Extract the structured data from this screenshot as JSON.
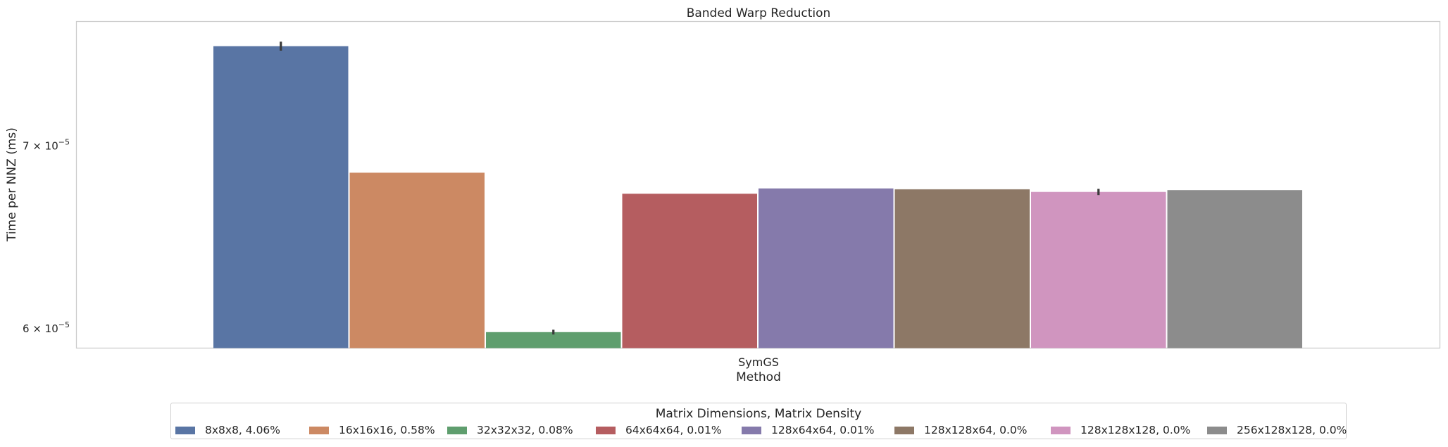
{
  "chart_data": {
    "type": "bar",
    "title": "Banded Warp Reduction",
    "xlabel": "Method",
    "ylabel": "Time per NNZ (ms)",
    "yscale": "log",
    "ylim": [
      5.9e-05,
      7.77e-05
    ],
    "yticks": [
      {
        "value": 6e-05,
        "mantissa": "6",
        "exp": "−5"
      },
      {
        "value": 7e-05,
        "mantissa": "7",
        "exp": "−5"
      }
    ],
    "grid": false,
    "categories": [
      "SymGS"
    ],
    "legend_title": "Matrix Dimensions, Matrix Density",
    "legend_position": "bottom-center",
    "series": [
      {
        "name": "8x8x8, 4.06%",
        "values": [
          7.61e-05
        ],
        "error": [
          2e-07
        ],
        "color": "#5975a4"
      },
      {
        "name": "16x16x16, 0.58%",
        "values": [
          6.84e-05
        ],
        "error": null,
        "color": "#cc8963"
      },
      {
        "name": "32x32x32, 0.08%",
        "values": [
          5.98e-05
        ],
        "error": [
          5e-08
        ],
        "color": "#5f9e6e"
      },
      {
        "name": "64x64x64, 0.01%",
        "values": [
          6.72e-05
        ],
        "error": null,
        "color": "#b55d60"
      },
      {
        "name": "128x64x64, 0.01%",
        "values": [
          6.75e-05
        ],
        "error": null,
        "color": "#857aab"
      },
      {
        "name": "128x128x64, 0.0%",
        "values": [
          6.745e-05
        ],
        "error": null,
        "color": "#8d7866"
      },
      {
        "name": "128x128x128, 0.0%",
        "values": [
          6.73e-05
        ],
        "error": [
          1e-07
        ],
        "color": "#d095bf"
      },
      {
        "name": "256x128x128, 0.0%",
        "values": [
          6.74e-05
        ],
        "error": null,
        "color": "#8c8c8c"
      }
    ]
  }
}
